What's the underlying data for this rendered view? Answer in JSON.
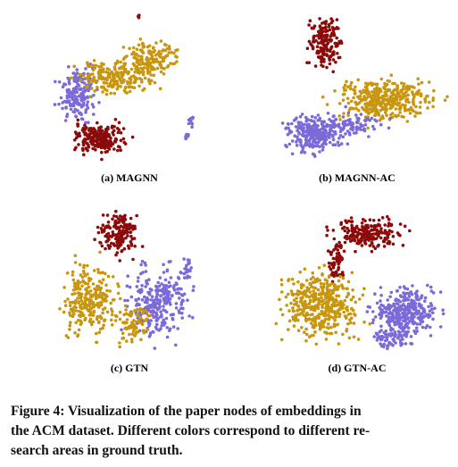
{
  "subfigures": [
    {
      "caption": "(a) MAGNN"
    },
    {
      "caption": "(b) MAGNN-AC"
    },
    {
      "caption": "(c) GTN"
    },
    {
      "caption": "(d) GTN-AC"
    }
  ],
  "caption": {
    "lines": [
      "Figure 4: Visualization of the paper nodes of embeddings in",
      "the ACM dataset. Different colors correspond to different re-",
      "search areas in ground truth."
    ]
  }
}
